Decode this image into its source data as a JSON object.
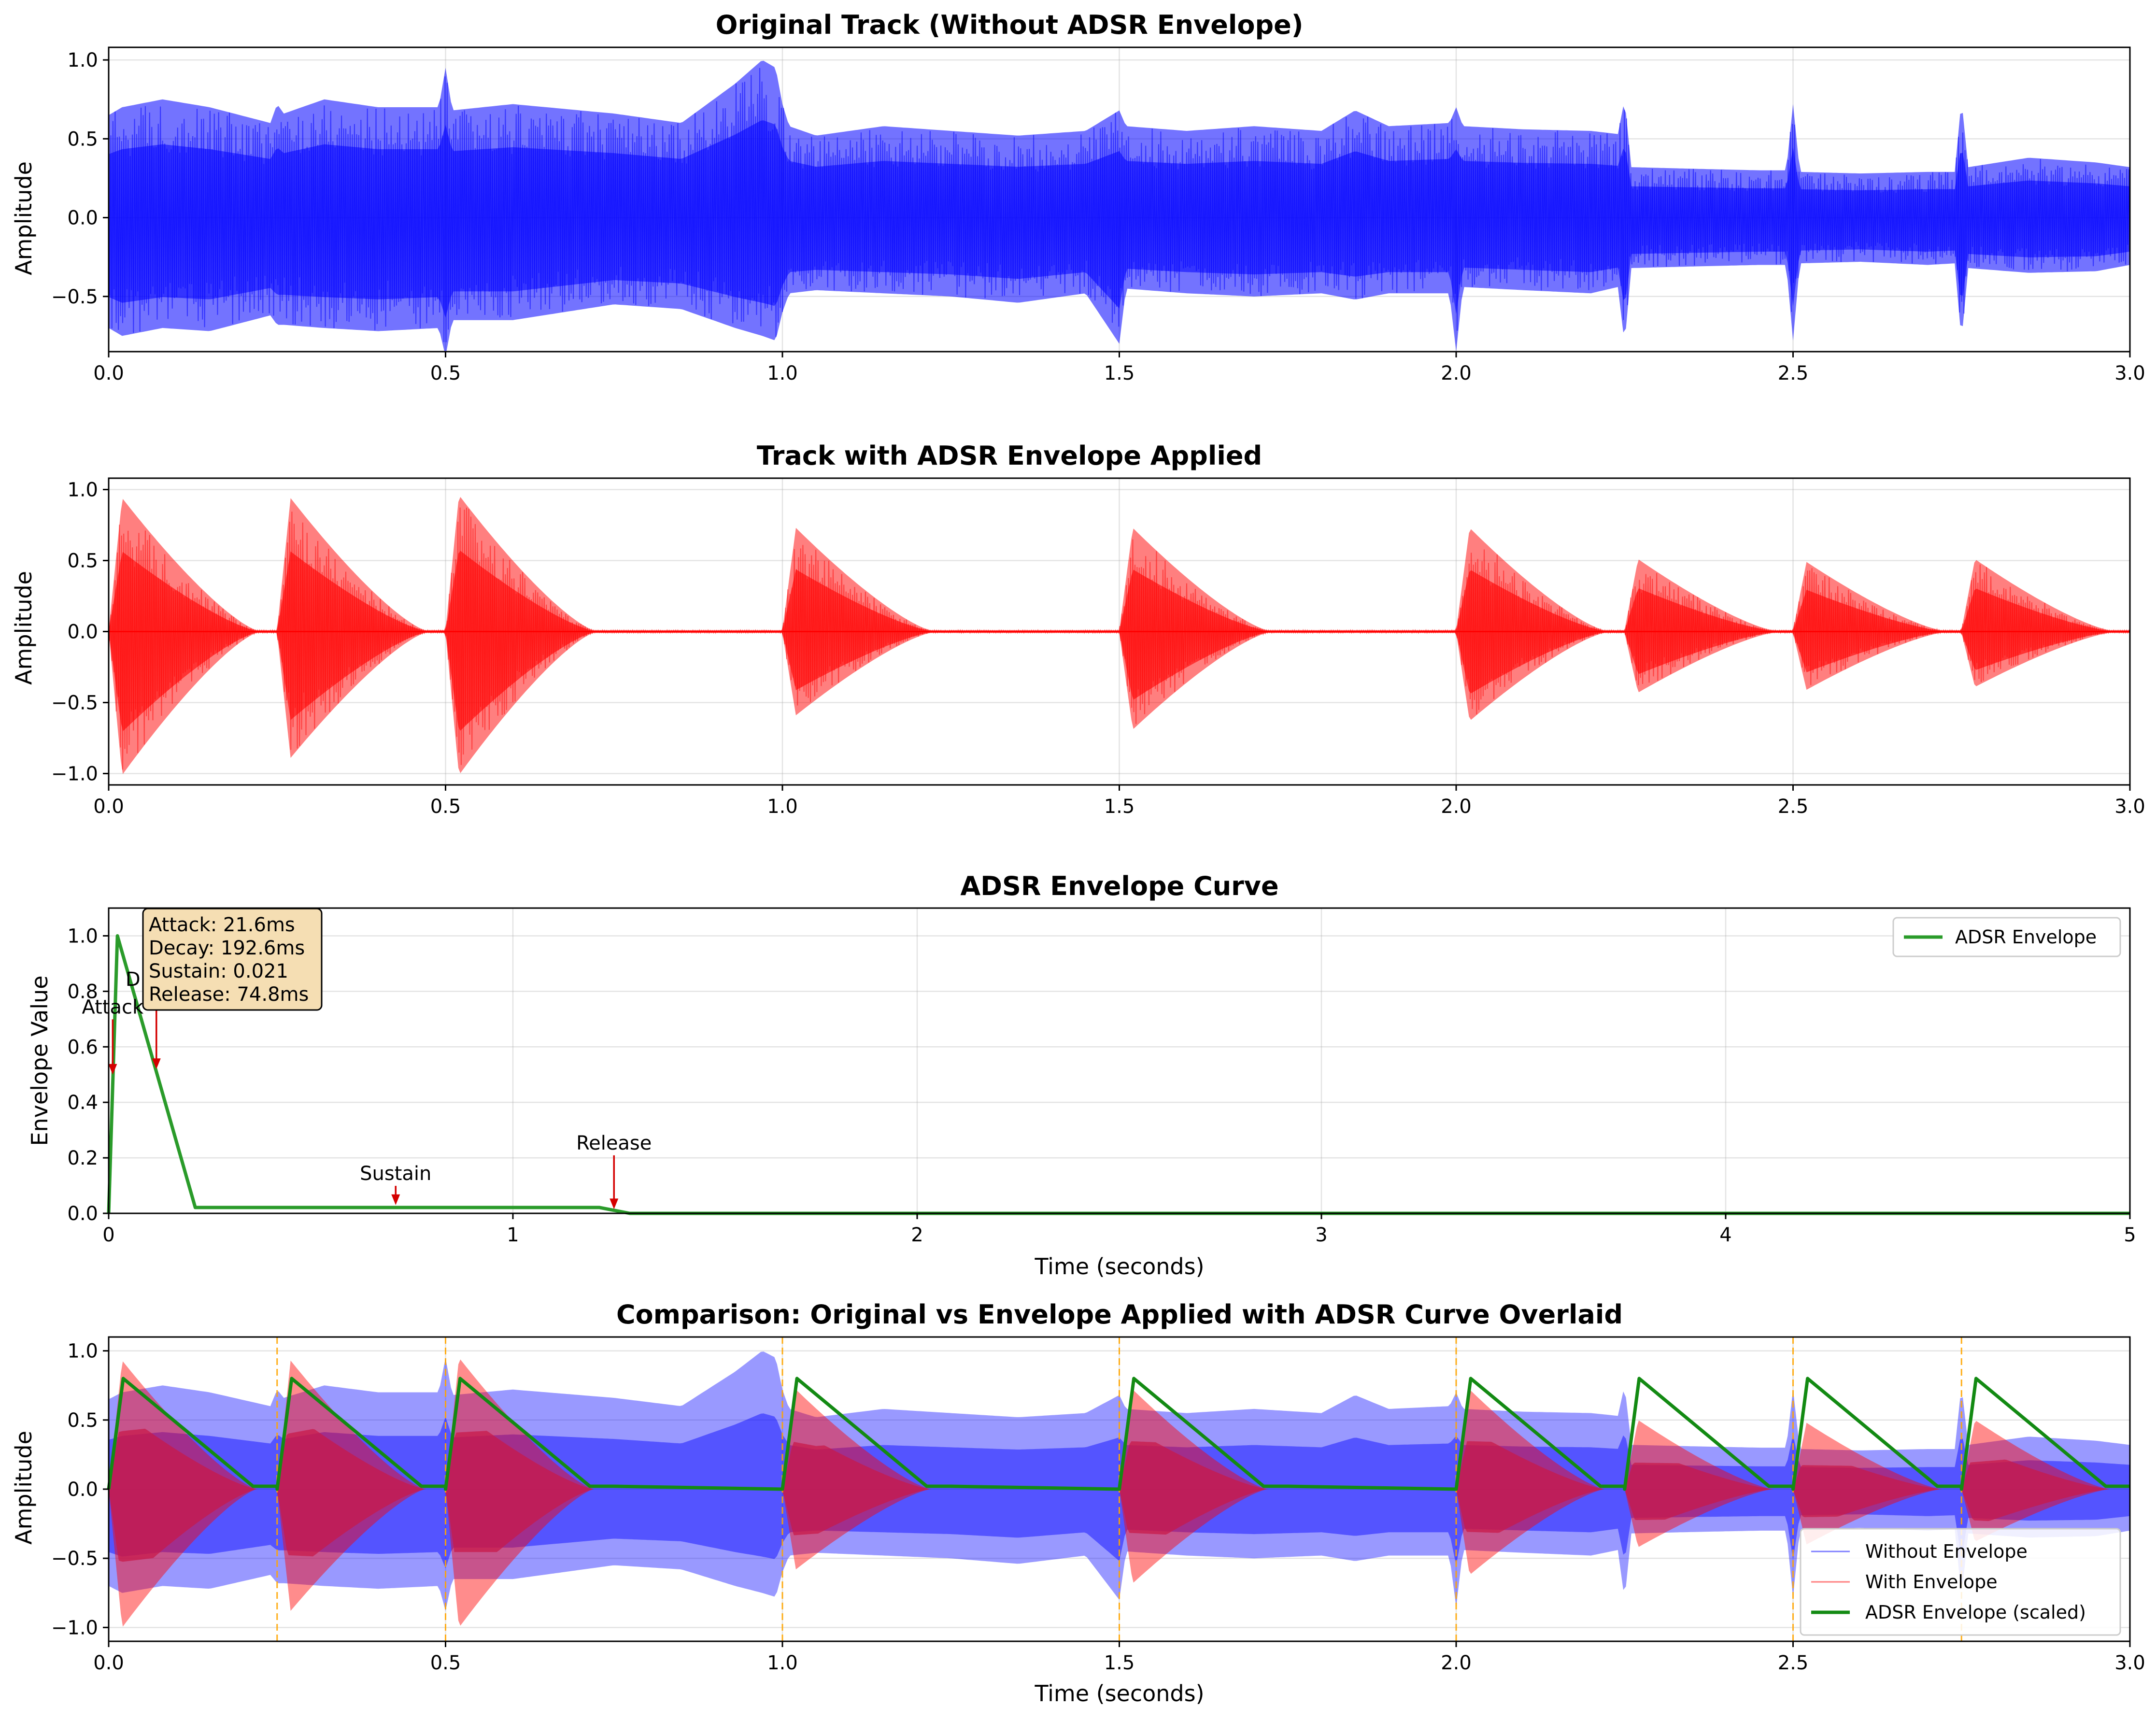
{
  "figure": {
    "background": "#ffffff"
  },
  "colors": {
    "original": "#0000ff",
    "enveloped": "#ff0000",
    "overlap": "#c8194a",
    "adsr": "#2a9b2a",
    "adsr_overlay": "#138a13",
    "marker_line": "#ffa500",
    "arrow": "#d40000",
    "info_box_fill": "#f5deb3"
  },
  "chart_data": [
    {
      "id": "original",
      "type": "line",
      "title": "Original Track (Without ADSR Envelope)",
      "xlabel": "",
      "ylabel": "Amplitude",
      "xlim": [
        0,
        3.0
      ],
      "ylim": [
        -0.85,
        1.08
      ],
      "xticks": [
        0.0,
        0.5,
        1.0,
        1.5,
        2.0,
        2.5,
        3.0
      ],
      "xtick_labels": [
        "0.0",
        "0.5",
        "1.0",
        "1.5",
        "2.0",
        "2.5",
        "3.0"
      ],
      "yticks": [
        -0.5,
        0.0,
        0.5,
        1.0
      ],
      "ytick_labels": [
        "−0.5",
        "0.0",
        "0.5",
        "1.0"
      ],
      "grid": true,
      "series": [
        {
          "color": "#0000ff",
          "envelope": {
            "t": [
              0.0,
              0.02,
              0.08,
              0.15,
              0.24,
              0.25,
              0.26,
              0.32,
              0.4,
              0.49,
              0.5,
              0.51,
              0.6,
              0.75,
              0.85,
              0.93,
              0.97,
              0.99,
              1.0,
              1.01,
              1.05,
              1.15,
              1.25,
              1.35,
              1.45,
              1.5,
              1.51,
              1.6,
              1.7,
              1.8,
              1.85,
              1.9,
              1.99,
              2.0,
              2.01,
              2.1,
              2.2,
              2.24,
              2.25,
              2.26,
              2.35,
              2.45,
              2.49,
              2.5,
              2.51,
              2.6,
              2.7,
              2.74,
              2.75,
              2.76,
              2.85,
              2.95,
              3.0
            ],
            "upper": [
              0.65,
              0.7,
              0.75,
              0.7,
              0.6,
              0.72,
              0.66,
              0.75,
              0.7,
              0.7,
              0.95,
              0.68,
              0.72,
              0.66,
              0.6,
              0.85,
              1.0,
              0.95,
              0.72,
              0.58,
              0.52,
              0.58,
              0.55,
              0.52,
              0.55,
              0.68,
              0.58,
              0.55,
              0.58,
              0.55,
              0.68,
              0.58,
              0.6,
              0.7,
              0.58,
              0.56,
              0.55,
              0.53,
              0.75,
              0.32,
              0.31,
              0.3,
              0.3,
              0.72,
              0.29,
              0.28,
              0.29,
              0.29,
              0.75,
              0.32,
              0.38,
              0.35,
              0.32
            ],
            "lower": [
              -0.7,
              -0.75,
              -0.7,
              -0.72,
              -0.62,
              -0.68,
              -0.68,
              -0.7,
              -0.72,
              -0.7,
              -0.88,
              -0.65,
              -0.65,
              -0.55,
              -0.58,
              -0.7,
              -0.75,
              -0.78,
              -0.6,
              -0.48,
              -0.46,
              -0.48,
              -0.5,
              -0.54,
              -0.48,
              -0.8,
              -0.45,
              -0.48,
              -0.5,
              -0.48,
              -0.52,
              -0.48,
              -0.48,
              -0.85,
              -0.44,
              -0.46,
              -0.48,
              -0.44,
              -0.8,
              -0.32,
              -0.31,
              -0.3,
              -0.3,
              -0.78,
              -0.29,
              -0.28,
              -0.3,
              -0.29,
              -0.78,
              -0.32,
              -0.35,
              -0.34,
              -0.3
            ]
          }
        }
      ]
    },
    {
      "id": "enveloped",
      "type": "line",
      "title": "Track with ADSR Envelope Applied",
      "xlabel": "",
      "ylabel": "Amplitude",
      "xlim": [
        0,
        3.0
      ],
      "ylim": [
        -1.08,
        1.08
      ],
      "xticks": [
        0.0,
        0.5,
        1.0,
        1.5,
        2.0,
        2.5,
        3.0
      ],
      "xtick_labels": [
        "0.0",
        "0.5",
        "1.0",
        "1.5",
        "2.0",
        "2.5",
        "3.0"
      ],
      "yticks": [
        -1.0,
        -0.5,
        0.0,
        0.5,
        1.0
      ],
      "ytick_labels": [
        "−1.0",
        "−0.5",
        "0.0",
        "0.5",
        "1.0"
      ],
      "grid": true,
      "notes": {
        "onsets": [
          0.0,
          0.25,
          0.5,
          1.0,
          1.5,
          2.0,
          2.25,
          2.5,
          2.75
        ],
        "peak_upper": [
          0.93,
          0.93,
          0.95,
          0.72,
          0.72,
          0.72,
          0.5,
          0.48,
          0.5
        ],
        "peak_lower": [
          -1.0,
          -0.88,
          -1.0,
          -0.58,
          -0.68,
          -0.62,
          -0.42,
          -0.4,
          -0.38
        ],
        "duration": 0.22
      }
    },
    {
      "id": "adsr_curve",
      "type": "line",
      "title": "ADSR Envelope Curve",
      "xlabel": "Time (seconds)",
      "ylabel": "Envelope Value",
      "xlim": [
        0,
        5
      ],
      "ylim": [
        0.0,
        1.1
      ],
      "xticks": [
        0,
        1,
        2,
        3,
        4,
        5
      ],
      "xtick_labels": [
        "0",
        "1",
        "2",
        "3",
        "4",
        "5"
      ],
      "yticks": [
        0.0,
        0.2,
        0.4,
        0.6,
        0.8,
        1.0
      ],
      "ytick_labels": [
        "0.0",
        "0.2",
        "0.4",
        "0.6",
        "0.8",
        "1.0"
      ],
      "grid": true,
      "legend_position": "top-right",
      "series": [
        {
          "name": "ADSR Envelope",
          "color": "#2a9b2a",
          "x": [
            0.0,
            0.0216,
            0.2142,
            1.2142,
            1.289,
            5.0
          ],
          "y": [
            0.0,
            1.0,
            0.021,
            0.021,
            0.0,
            0.0
          ]
        }
      ],
      "annotations": [
        {
          "text": "Attack",
          "x": 0.01,
          "y": 0.5,
          "label_x": 0.01,
          "label_y": 0.72
        },
        {
          "text": "D",
          "x": 0.118,
          "y": 0.52,
          "label_x": 0.06,
          "label_y": 0.82
        },
        {
          "text": "Sustain",
          "x": 0.71,
          "y": 0.03,
          "label_x": 0.71,
          "label_y": 0.12
        },
        {
          "text": "Release",
          "x": 1.25,
          "y": 0.015,
          "label_x": 1.25,
          "label_y": 0.23
        }
      ],
      "info_box": [
        "Attack: 21.6ms",
        "Decay: 192.6ms",
        "Sustain: 0.021",
        "Release: 74.8ms"
      ]
    },
    {
      "id": "comparison",
      "type": "line",
      "title": "Comparison: Original vs Envelope Applied with ADSR Curve Overlaid",
      "xlabel": "Time (seconds)",
      "ylabel": "Amplitude",
      "xlim": [
        0,
        3.0
      ],
      "ylim": [
        -1.1,
        1.1
      ],
      "xticks": [
        0.0,
        0.5,
        1.0,
        1.5,
        2.0,
        2.5,
        3.0
      ],
      "xtick_labels": [
        "0.0",
        "0.5",
        "1.0",
        "1.5",
        "2.0",
        "2.5",
        "3.0"
      ],
      "yticks": [
        -1.0,
        -0.5,
        0.0,
        0.5,
        1.0
      ],
      "ytick_labels": [
        "−1.0",
        "−0.5",
        "0.0",
        "0.5",
        "1.0"
      ],
      "grid": true,
      "legend_position": "bottom-right",
      "series": [
        {
          "name": "Without Envelope",
          "color": "#0000ff"
        },
        {
          "name": "With Envelope",
          "color": "#ff0000"
        },
        {
          "name": "ADSR Envelope (scaled)",
          "color": "#138a13",
          "peak": 0.8,
          "sustain": 0.021
        }
      ],
      "onset_lines": [
        0.25,
        0.5,
        1.0,
        1.5,
        2.0,
        2.5,
        2.75
      ]
    }
  ]
}
